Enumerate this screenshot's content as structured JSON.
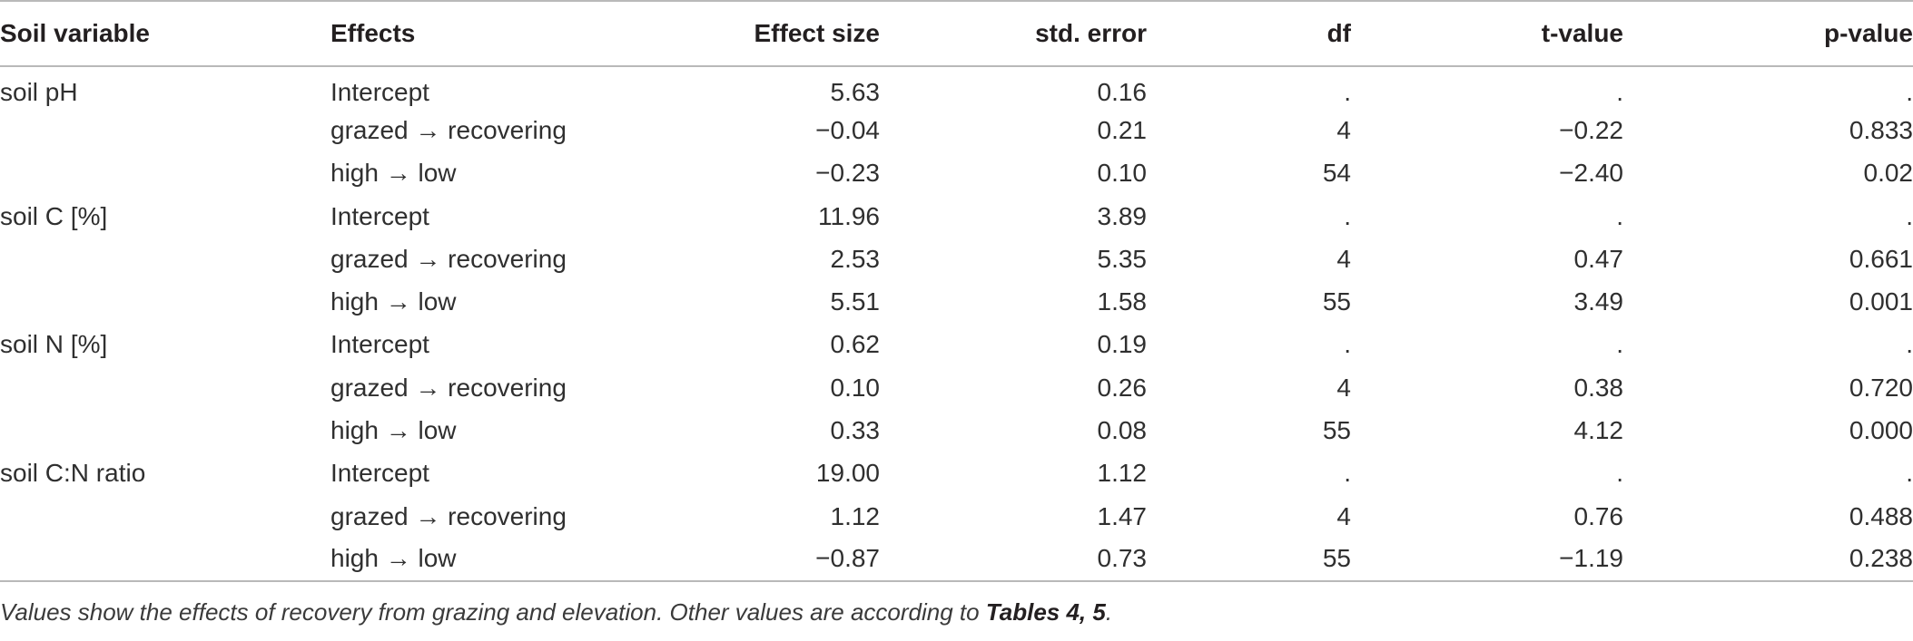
{
  "table": {
    "headers": [
      "Soil variable",
      "Effects",
      "Effect size",
      "std. error",
      "df",
      "t-value",
      "p-value"
    ],
    "rows": [
      {
        "variable": "soil pH",
        "effect": "Intercept",
        "size": "5.63",
        "se": "0.16",
        "df": ".",
        "t": ".",
        "p": "."
      },
      {
        "variable": "",
        "effect": "grazed → recovering",
        "size": "−0.04",
        "se": "0.21",
        "df": "4",
        "t": "−0.22",
        "p": "0.833"
      },
      {
        "variable": "",
        "effect": "high → low",
        "size": "−0.23",
        "se": "0.10",
        "df": "54",
        "t": "−2.40",
        "p": "0.02"
      },
      {
        "variable": "soil C [%]",
        "effect": "Intercept",
        "size": "11.96",
        "se": "3.89",
        "df": ".",
        "t": ".",
        "p": "."
      },
      {
        "variable": "",
        "effect": "grazed → recovering",
        "size": "2.53",
        "se": "5.35",
        "df": "4",
        "t": "0.47",
        "p": "0.661"
      },
      {
        "variable": "",
        "effect": "high → low",
        "size": "5.51",
        "se": "1.58",
        "df": "55",
        "t": "3.49",
        "p": "0.001"
      },
      {
        "variable": "soil N [%]",
        "effect": "Intercept",
        "size": "0.62",
        "se": "0.19",
        "df": ".",
        "t": ".",
        "p": "."
      },
      {
        "variable": "",
        "effect": "grazed → recovering",
        "size": "0.10",
        "se": "0.26",
        "df": "4",
        "t": "0.38",
        "p": "0.720"
      },
      {
        "variable": "",
        "effect": "high → low",
        "size": "0.33",
        "se": "0.08",
        "df": "55",
        "t": "4.12",
        "p": "0.000"
      },
      {
        "variable": "soil C:N ratio",
        "effect": "Intercept",
        "size": "19.00",
        "se": "1.12",
        "df": ".",
        "t": ".",
        "p": "."
      },
      {
        "variable": "",
        "effect": "grazed → recovering",
        "size": "1.12",
        "se": "1.47",
        "df": "4",
        "t": "0.76",
        "p": "0.488"
      },
      {
        "variable": "",
        "effect": "high → low",
        "size": "−0.87",
        "se": "0.73",
        "df": "55",
        "t": "−1.19",
        "p": "0.238"
      }
    ]
  },
  "footnote": {
    "text": "Values show the effects of recovery from grazing and elevation. Other values are according to ",
    "ref": "Tables 4, 5",
    "end": "."
  }
}
